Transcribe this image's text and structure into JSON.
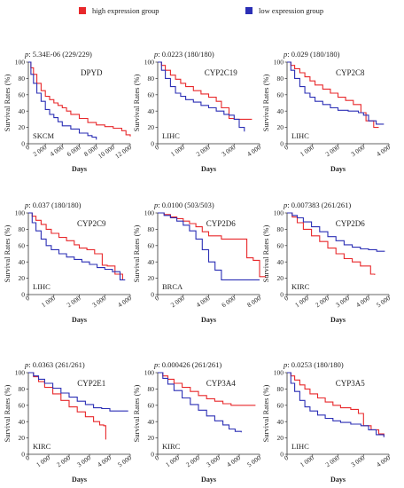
{
  "legend": {
    "high_label": "high expression group",
    "low_label": "low expression group",
    "high_color": "#e8282b",
    "low_color": "#2b2fb5"
  },
  "chart_data": [
    {
      "type": "line",
      "p_value": "5.34E-06 (229/229)",
      "gene": "DPYD",
      "cancer": "SKCM",
      "xlabel": "Days",
      "ylabel": "Survival Rates (%)",
      "xlim": [
        0,
        12000
      ],
      "ylim": [
        0,
        100
      ],
      "xticks": [
        0,
        2000,
        4000,
        6000,
        8000,
        10000,
        12000
      ],
      "xtick_labels": [
        "0",
        "2 000",
        "4 000",
        "6 000",
        "8 000",
        "10 000",
        "12 000"
      ],
      "yticks": [
        0,
        20,
        40,
        60,
        80,
        100
      ],
      "series": [
        {
          "name": "high expression group",
          "x": [
            0,
            300,
            600,
            1000,
            1500,
            2000,
            2500,
            3000,
            3500,
            4000,
            4500,
            5000,
            6000,
            7000,
            8000,
            9000,
            10000,
            11000,
            11500,
            12000
          ],
          "y": [
            100,
            93,
            85,
            74,
            65,
            58,
            54,
            50,
            47,
            44,
            40,
            36,
            31,
            26,
            23,
            21,
            19,
            16,
            11,
            9
          ]
        },
        {
          "name": "low expression group",
          "x": [
            0,
            300,
            600,
            1000,
            1500,
            2000,
            2500,
            3000,
            3500,
            4000,
            5000,
            6000,
            7000,
            7500,
            8000
          ],
          "y": [
            100,
            85,
            74,
            62,
            52,
            42,
            36,
            32,
            27,
            22,
            18,
            13,
            10,
            8,
            5
          ]
        }
      ]
    },
    {
      "type": "line",
      "p_value": "0.0223 (180/180)",
      "gene": "CYP2C19",
      "cancer": "LIHC",
      "xlabel": "Days",
      "ylabel": "Survival Rates (%)",
      "xlim": [
        0,
        4000
      ],
      "ylim": [
        0,
        100
      ],
      "xticks": [
        0,
        1000,
        2000,
        3000,
        4000
      ],
      "xtick_labels": [
        "0",
        "1 000",
        "2 000",
        "3 000",
        "4 000"
      ],
      "yticks": [
        0,
        20,
        40,
        60,
        80,
        100
      ],
      "series": [
        {
          "name": "high expression group",
          "x": [
            0,
            150,
            300,
            500,
            700,
            900,
            1100,
            1400,
            1700,
            2000,
            2300,
            2500,
            2800,
            3000,
            3300,
            3700
          ],
          "y": [
            100,
            96,
            90,
            84,
            79,
            74,
            70,
            65,
            61,
            57,
            52,
            44,
            31,
            30,
            30,
            30
          ]
        },
        {
          "name": "low expression group",
          "x": [
            0,
            150,
            300,
            500,
            700,
            900,
            1100,
            1400,
            1700,
            2000,
            2300,
            2600,
            2800,
            3000,
            3200,
            3400
          ],
          "y": [
            100,
            90,
            80,
            70,
            62,
            58,
            54,
            51,
            47,
            44,
            40,
            36,
            35,
            30,
            20,
            15
          ]
        }
      ]
    },
    {
      "type": "line",
      "p_value": "0.029 (180/180)",
      "gene": "CYP2C8",
      "cancer": "LIHC",
      "xlabel": "Days",
      "ylabel": "Survival Rates (%)",
      "xlim": [
        0,
        4000
      ],
      "ylim": [
        0,
        100
      ],
      "xticks": [
        0,
        1000,
        2000,
        3000,
        4000
      ],
      "xtick_labels": [
        "0",
        "1 000",
        "2 000",
        "3 000",
        "4 000"
      ],
      "yticks": [
        0,
        20,
        40,
        60,
        80,
        100
      ],
      "series": [
        {
          "name": "high expression group",
          "x": [
            0,
            150,
            300,
            500,
            700,
            900,
            1100,
            1400,
            1700,
            2000,
            2300,
            2600,
            2900,
            3100,
            3400,
            3600
          ],
          "y": [
            100,
            96,
            92,
            87,
            82,
            77,
            72,
            67,
            62,
            57,
            53,
            48,
            38,
            28,
            20,
            20
          ]
        },
        {
          "name": "low expression group",
          "x": [
            0,
            150,
            300,
            500,
            700,
            900,
            1100,
            1400,
            1700,
            2000,
            2400,
            2800,
            3000,
            3200,
            3500,
            3800
          ],
          "y": [
            100,
            90,
            80,
            70,
            62,
            57,
            52,
            48,
            44,
            41,
            40,
            38,
            35,
            28,
            24,
            24
          ]
        }
      ]
    },
    {
      "type": "line",
      "p_value": "0.037 (180/180)",
      "gene": "CYP2C9",
      "cancer": "LIHC",
      "xlabel": "Days",
      "ylabel": "Survival Rates (%)",
      "xlim": [
        0,
        4000
      ],
      "ylim": [
        0,
        100
      ],
      "xticks": [
        0,
        1000,
        2000,
        3000,
        4000
      ],
      "xtick_labels": [
        "0",
        "1 000",
        "2 000",
        "3 000",
        "4 000"
      ],
      "yticks": [
        0,
        20,
        40,
        60,
        80,
        100
      ],
      "series": [
        {
          "name": "high expression group",
          "x": [
            0,
            150,
            300,
            500,
            700,
            900,
            1200,
            1500,
            1800,
            2000,
            2300,
            2600,
            2900,
            3100,
            3400,
            3700
          ],
          "y": [
            100,
            96,
            91,
            86,
            80,
            75,
            70,
            66,
            61,
            57,
            55,
            50,
            36,
            35,
            25,
            18
          ]
        },
        {
          "name": "low expression group",
          "x": [
            0,
            150,
            300,
            500,
            700,
            900,
            1200,
            1500,
            1800,
            2100,
            2400,
            2700,
            3000,
            3300,
            3600,
            3800
          ],
          "y": [
            100,
            88,
            78,
            68,
            60,
            55,
            50,
            46,
            43,
            40,
            37,
            33,
            31,
            28,
            18,
            18
          ]
        }
      ]
    },
    {
      "type": "line",
      "p_value": "0.0100 (503/503)",
      "gene": "CYP2D6",
      "cancer": "BRCA",
      "xlabel": "Days",
      "ylabel": "Survival Rates (%)",
      "xlim": [
        0,
        8000
      ],
      "ylim": [
        0,
        100
      ],
      "xticks": [
        0,
        2000,
        4000,
        6000,
        8000
      ],
      "xtick_labels": [
        "0",
        "2 000",
        "4 000",
        "6 000",
        "8 000"
      ],
      "yticks": [
        0,
        20,
        40,
        60,
        80,
        100
      ],
      "series": [
        {
          "name": "high expression group",
          "x": [
            0,
            500,
            1000,
            1500,
            2000,
            2500,
            3000,
            3500,
            4000,
            5000,
            6000,
            6500,
            7000,
            7500,
            8000,
            8500
          ],
          "y": [
            100,
            98,
            95,
            93,
            90,
            87,
            83,
            77,
            72,
            68,
            68,
            68,
            45,
            42,
            22,
            22
          ]
        },
        {
          "name": "low expression group",
          "x": [
            0,
            500,
            1000,
            1500,
            2000,
            2500,
            3000,
            3500,
            4000,
            4500,
            5000,
            6000,
            7000,
            8000
          ],
          "y": [
            100,
            97,
            94,
            90,
            85,
            78,
            68,
            55,
            40,
            30,
            18,
            18,
            18,
            18
          ]
        }
      ]
    },
    {
      "type": "line",
      "p_value": "0.007383 (261/261)",
      "gene": "CYP2D6",
      "cancer": "KIRC",
      "xlabel": "Days",
      "ylabel": "Survival Rates (%)",
      "xlim": [
        0,
        5000
      ],
      "ylim": [
        0,
        100
      ],
      "xticks": [
        0,
        1000,
        2000,
        3000,
        4000,
        5000
      ],
      "xtick_labels": [
        "0",
        "1 000",
        "2 000",
        "3 000",
        "4 000",
        "5 000"
      ],
      "yticks": [
        0,
        20,
        40,
        60,
        80,
        100
      ],
      "series": [
        {
          "name": "high expression group",
          "x": [
            0,
            250,
            500,
            800,
            1200,
            1600,
            2000,
            2400,
            2800,
            3200,
            3600,
            3900,
            4100,
            4300
          ],
          "y": [
            100,
            95,
            88,
            80,
            72,
            65,
            57,
            50,
            44,
            40,
            35,
            35,
            25,
            24
          ]
        },
        {
          "name": "low expression group",
          "x": [
            0,
            250,
            500,
            800,
            1200,
            1600,
            2000,
            2400,
            2800,
            3200,
            3600,
            4000,
            4400,
            4800
          ],
          "y": [
            100,
            97,
            94,
            89,
            83,
            77,
            71,
            66,
            61,
            58,
            56,
            55,
            53,
            53
          ]
        }
      ]
    },
    {
      "type": "line",
      "p_value": "0.0363 (261/261)",
      "gene": "CYP2E1",
      "cancer": "KIRC",
      "xlabel": "Days",
      "ylabel": "Survival Rates (%)",
      "xlim": [
        0,
        5000
      ],
      "ylim": [
        0,
        100
      ],
      "xticks": [
        0,
        1000,
        2000,
        3000,
        4000,
        5000
      ],
      "xtick_labels": [
        "0",
        "1 000",
        "2 000",
        "3 000",
        "4 000",
        "5 000"
      ],
      "yticks": [
        0,
        20,
        40,
        60,
        80,
        100
      ],
      "series": [
        {
          "name": "high expression group",
          "x": [
            0,
            250,
            500,
            800,
            1200,
            1600,
            2000,
            2400,
            2800,
            3200,
            3500,
            3700,
            3800
          ],
          "y": [
            100,
            95,
            89,
            82,
            74,
            66,
            58,
            52,
            46,
            40,
            36,
            35,
            18
          ]
        },
        {
          "name": "low expression group",
          "x": [
            0,
            250,
            500,
            800,
            1200,
            1600,
            2000,
            2400,
            2800,
            3200,
            3600,
            4000,
            4500,
            4900
          ],
          "y": [
            100,
            96,
            92,
            87,
            81,
            75,
            70,
            65,
            61,
            57,
            56,
            53,
            53,
            53
          ]
        }
      ]
    },
    {
      "type": "line",
      "p_value": "0.000426 (261/261)",
      "gene": "CYP3A4",
      "cancer": "KIRC",
      "xlabel": "Days",
      "ylabel": "Survival Rates (%)",
      "xlim": [
        0,
        5000
      ],
      "ylim": [
        0,
        100
      ],
      "xticks": [
        0,
        1000,
        2000,
        3000,
        4000,
        5000
      ],
      "xtick_labels": [
        "0",
        "1 000",
        "2 000",
        "3 000",
        "4 000",
        "5 000"
      ],
      "yticks": [
        0,
        20,
        40,
        60,
        80,
        100
      ],
      "series": [
        {
          "name": "high expression group",
          "x": [
            0,
            250,
            500,
            800,
            1200,
            1600,
            2000,
            2400,
            2800,
            3200,
            3600,
            4000,
            4400,
            4800
          ],
          "y": [
            100,
            96,
            92,
            87,
            82,
            77,
            72,
            68,
            65,
            62,
            60,
            60,
            60,
            60
          ]
        },
        {
          "name": "low expression group",
          "x": [
            0,
            250,
            500,
            800,
            1200,
            1600,
            2000,
            2400,
            2800,
            3200,
            3500,
            3800,
            4100
          ],
          "y": [
            100,
            93,
            86,
            78,
            69,
            61,
            54,
            47,
            41,
            36,
            31,
            28,
            27
          ]
        }
      ]
    },
    {
      "type": "line",
      "p_value": "0.0253 (180/180)",
      "gene": "CYP3A5",
      "cancer": "LIHC",
      "xlabel": "Days",
      "ylabel": "Survival Rates (%)",
      "xlim": [
        0,
        4000
      ],
      "ylim": [
        0,
        100
      ],
      "xticks": [
        0,
        1000,
        2000,
        3000,
        4000
      ],
      "xtick_labels": [
        "0",
        "1 000",
        "2 000",
        "3 000",
        "4 000"
      ],
      "yticks": [
        0,
        20,
        40,
        60,
        80,
        100
      ],
      "series": [
        {
          "name": "high expression group",
          "x": [
            0,
            150,
            300,
            500,
            700,
            900,
            1200,
            1500,
            1800,
            2100,
            2500,
            2800,
            3000,
            3300,
            3600,
            3800
          ],
          "y": [
            100,
            96,
            91,
            85,
            80,
            74,
            69,
            64,
            60,
            57,
            55,
            50,
            35,
            30,
            25,
            22
          ]
        },
        {
          "name": "low expression group",
          "x": [
            0,
            150,
            300,
            500,
            700,
            900,
            1200,
            1500,
            1800,
            2100,
            2500,
            2900,
            3200,
            3500,
            3800
          ],
          "y": [
            100,
            87,
            77,
            66,
            58,
            53,
            48,
            44,
            41,
            39,
            37,
            35,
            30,
            24,
            21
          ]
        }
      ]
    }
  ]
}
